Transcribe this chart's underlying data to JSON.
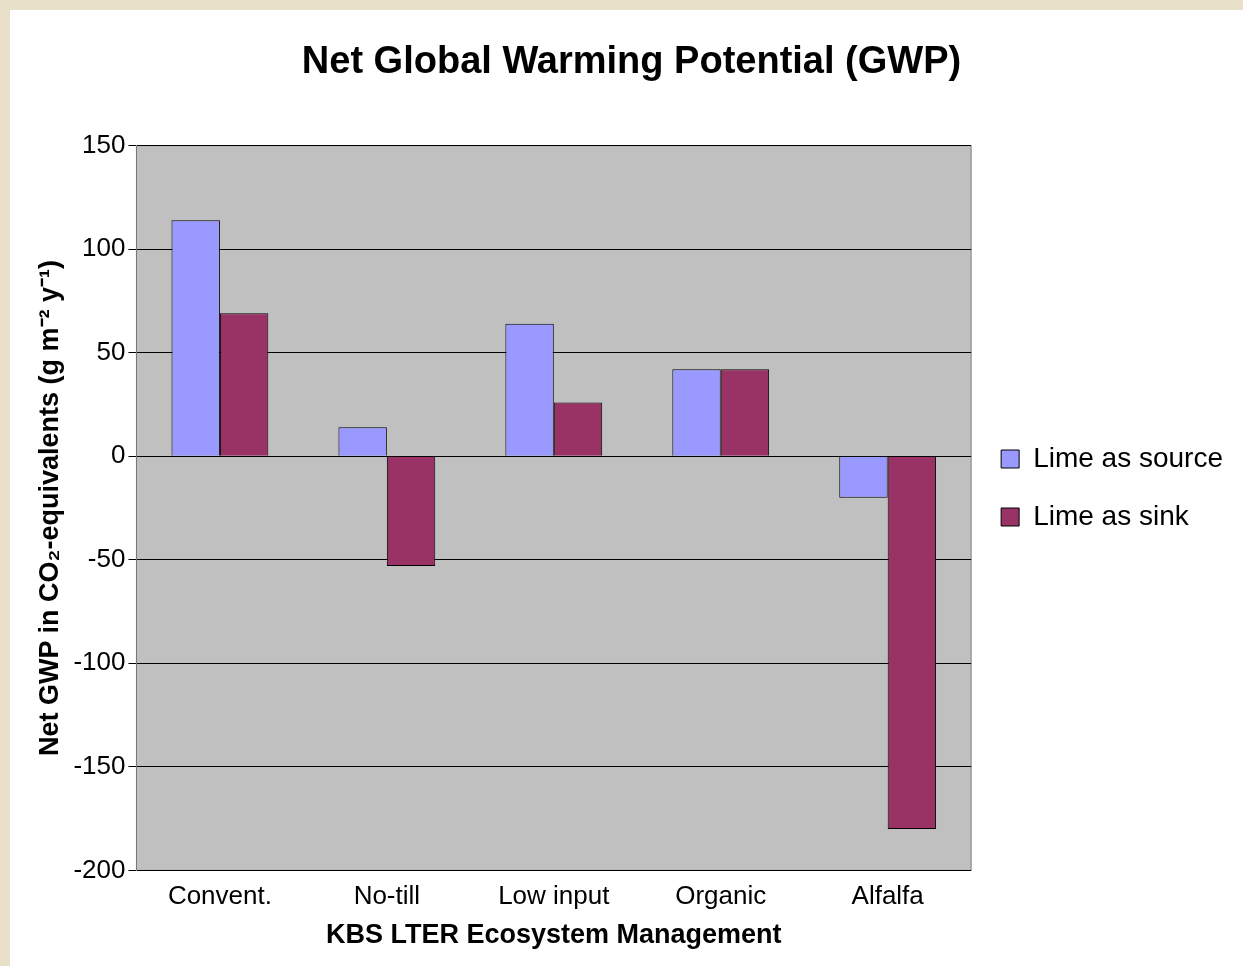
{
  "chart_data": {
    "type": "bar",
    "title": "Net Global Warming Potential (GWP)",
    "xlabel": "KBS LTER Ecosystem Management",
    "ylabel": "Net GWP in CO₂-equivalents (g m⁻² y⁻¹)",
    "categories": [
      "Convent.",
      "No-till",
      "Low input",
      "Organic",
      "Alfalfa"
    ],
    "series": [
      {
        "name": "Lime as source",
        "color": "#9999ff",
        "values": [
          114,
          14,
          64,
          42,
          -20
        ]
      },
      {
        "name": "Lime as sink",
        "color": "#993366",
        "values": [
          69,
          -53,
          26,
          42,
          -180
        ]
      }
    ],
    "ylim": [
      -200,
      150
    ],
    "yticks": [
      -200,
      -150,
      -100,
      -50,
      0,
      50,
      100,
      150
    ],
    "grid": "y",
    "legend": "right"
  }
}
